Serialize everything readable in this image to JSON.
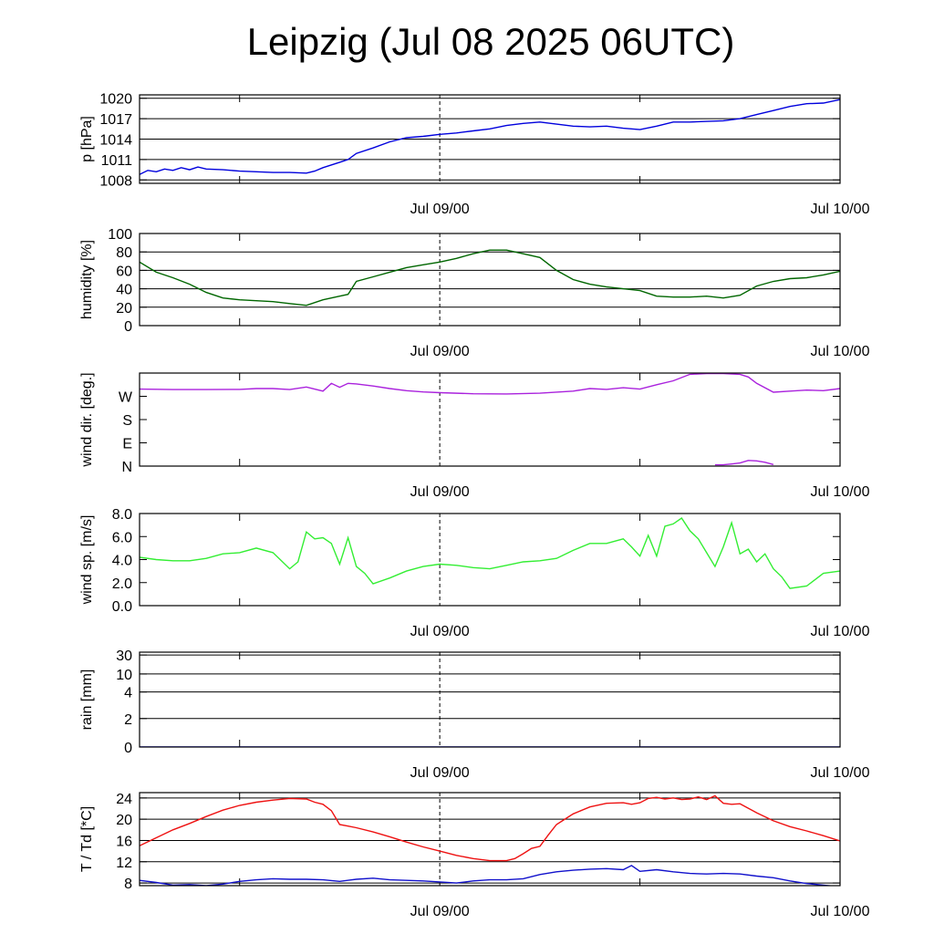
{
  "title": "Leipzig (Jul 08 2025 06UTC)",
  "x_axis": {
    "start_hours": 6,
    "end_hours": 48,
    "labeled_ticks": [
      {
        "label": "Jul 09/00",
        "hours": 24
      },
      {
        "label": "Jul 10/00",
        "hours": 48
      }
    ],
    "minor_ticks_hours": [
      12,
      36
    ]
  },
  "chart_data": [
    {
      "type": "line",
      "name": "pressure",
      "ylabel": "p [hPa]",
      "ylim": [
        1007.5,
        1020.5
      ],
      "yticks": [
        1008,
        1011,
        1014,
        1017,
        1020
      ],
      "ytick_labels": [
        "1008",
        "1011",
        "1014",
        "1017",
        "1020"
      ],
      "grid": true,
      "color": "#0000dd",
      "x": [
        6,
        6.5,
        7,
        7.5,
        8,
        8.5,
        9,
        9.5,
        10,
        11,
        12,
        13,
        14,
        15,
        16,
        16.5,
        17,
        18,
        18.5,
        19,
        20,
        21,
        22,
        23,
        24,
        25,
        26,
        27,
        28,
        29,
        30,
        31,
        32,
        33,
        34,
        35,
        36,
        37,
        38,
        39,
        40,
        41,
        42,
        43,
        44,
        45,
        46,
        47,
        48
      ],
      "y": [
        1008.8,
        1009.4,
        1009.2,
        1009.6,
        1009.4,
        1009.8,
        1009.5,
        1009.9,
        1009.6,
        1009.5,
        1009.3,
        1009.2,
        1009.1,
        1009.1,
        1009,
        1009.3,
        1009.8,
        1010.6,
        1011,
        1011.9,
        1012.7,
        1013.6,
        1014.2,
        1014.4,
        1014.7,
        1014.9,
        1015.2,
        1015.5,
        1016,
        1016.3,
        1016.5,
        1016.2,
        1015.9,
        1015.8,
        1015.9,
        1015.6,
        1015.4,
        1015.9,
        1016.5,
        1016.5,
        1016.6,
        1016.7,
        1017,
        1017.6,
        1018.2,
        1018.8,
        1019.2,
        1019.3,
        1019.8
      ]
    },
    {
      "type": "line",
      "name": "humidity",
      "ylabel": "humidity [%]",
      "ylim": [
        0,
        100
      ],
      "yticks": [
        0,
        20,
        40,
        60,
        80,
        100
      ],
      "ytick_labels": [
        "0",
        "20",
        "40",
        "60",
        "80",
        "100"
      ],
      "grid": true,
      "color": "#006600",
      "x": [
        6,
        7,
        8,
        9,
        10,
        11,
        12,
        13,
        14,
        15,
        16,
        17,
        18,
        18.5,
        19,
        20,
        21,
        22,
        23,
        24,
        25,
        26,
        27,
        28,
        29,
        30,
        31,
        32,
        33,
        34,
        35,
        36,
        37,
        38,
        39,
        40,
        41,
        42,
        43,
        44,
        45,
        46,
        47,
        48
      ],
      "y": [
        69,
        58,
        52,
        45,
        36,
        30,
        28,
        27,
        26,
        24,
        22,
        28,
        32,
        34,
        48,
        53,
        58,
        63,
        66,
        69,
        73,
        78,
        82,
        82,
        78,
        74,
        60,
        50,
        45,
        42,
        40,
        38,
        32,
        31,
        31,
        32,
        30,
        33,
        43,
        48,
        51,
        52,
        55,
        59
      ]
    },
    {
      "type": "line",
      "name": "wind direction",
      "ylabel": "wind dir. [deg.]",
      "ylim": [
        0,
        360
      ],
      "yticks": [
        0,
        90,
        180,
        270
      ],
      "ytick_labels": [
        "N",
        "E",
        "S",
        "W"
      ],
      "grid": false,
      "color": "#aa22dd",
      "x": [
        6,
        8,
        10,
        12,
        13,
        14,
        15,
        16,
        17,
        17.5,
        18,
        18.5,
        19,
        20,
        21,
        22,
        23,
        24,
        26,
        28,
        30,
        32,
        33,
        34,
        35,
        36,
        37,
        38,
        39,
        40,
        41,
        42,
        42.5,
        43,
        44,
        45,
        46,
        47,
        48
      ],
      "y": [
        298,
        296,
        296,
        297,
        300,
        300,
        296,
        306,
        290,
        320,
        305,
        320,
        318,
        310,
        300,
        292,
        287,
        284,
        280,
        279,
        282,
        290,
        300,
        297,
        303,
        298,
        315,
        330,
        355,
        358,
        358,
        355,
        345,
        320,
        286,
        290,
        294,
        292,
        300
      ],
      "second_segment": {
        "x": [
          40.5,
          41,
          41.5,
          42,
          42.5,
          43,
          43.5,
          44
        ],
        "y": [
          5,
          5,
          8,
          12,
          22,
          20,
          15,
          6
        ]
      }
    },
    {
      "type": "line",
      "name": "wind speed",
      "ylabel": "wind sp. [m/s]",
      "ylim": [
        0,
        8
      ],
      "yticks": [
        0,
        2,
        4,
        6,
        8
      ],
      "ytick_labels": [
        "0.0",
        "2.0",
        "4.0",
        "6.0",
        "8.0"
      ],
      "grid": false,
      "color": "#33ee33",
      "x": [
        6,
        7,
        8,
        9,
        10,
        11,
        12,
        13,
        14,
        15,
        15.5,
        16,
        16.5,
        17,
        17.5,
        18,
        18.5,
        19,
        19.5,
        20,
        21,
        22,
        23,
        24,
        25,
        26,
        27,
        28,
        29,
        30,
        31,
        32,
        33,
        34,
        35,
        35.5,
        36,
        36.5,
        37,
        37.5,
        38,
        38.5,
        39,
        39.5,
        40,
        40.5,
        41,
        41.5,
        42,
        42.5,
        43,
        43.5,
        44,
        44.5,
        45,
        46,
        47,
        48
      ],
      "y": [
        4.2,
        4,
        3.9,
        3.9,
        4.1,
        4.5,
        4.6,
        5,
        4.6,
        3.2,
        3.8,
        6.4,
        5.8,
        5.9,
        5.4,
        3.6,
        5.9,
        3.4,
        2.8,
        1.9,
        2.4,
        3,
        3.4,
        3.6,
        3.5,
        3.3,
        3.2,
        3.5,
        3.8,
        3.9,
        4.1,
        4.8,
        5.4,
        5.4,
        5.8,
        5.1,
        4.3,
        6.1,
        4.3,
        6.9,
        7.1,
        7.6,
        6.5,
        5.8,
        4.6,
        3.4,
        5.1,
        7.2,
        4.5,
        4.9,
        3.8,
        4.5,
        3.2,
        2.5,
        1.5,
        1.7,
        2.8,
        3
      ]
    },
    {
      "type": "line",
      "name": "rain",
      "ylabel": "rain [mm]",
      "ylim": [
        0,
        30
      ],
      "yticks": [
        0,
        2,
        4,
        10,
        30
      ],
      "ytick_labels": [
        "0",
        "2",
        "4",
        "10",
        "30"
      ],
      "grid": true,
      "scale": "nonlinear",
      "color": "#0000dd",
      "x": [
        6,
        48
      ],
      "y": [
        0,
        0
      ]
    },
    {
      "type": "line",
      "name": "temperature and dew point",
      "ylabel": "T / Td [*C]",
      "ylim": [
        7.5,
        25
      ],
      "yticks": [
        8,
        12,
        16,
        20,
        24
      ],
      "ytick_labels": [
        "8",
        "12",
        "16",
        "20",
        "24"
      ],
      "grid": true,
      "series": [
        {
          "color": "#ee1111",
          "x": [
            6,
            7,
            8,
            9,
            10,
            11,
            12,
            13,
            14,
            15,
            16,
            16.5,
            17,
            17.5,
            18,
            18.5,
            19,
            20,
            21,
            22,
            23,
            24,
            25,
            26,
            27,
            28,
            28.5,
            29,
            29.5,
            30,
            30.5,
            31,
            32,
            33,
            34,
            35,
            35.5,
            36,
            36.5,
            37,
            37.5,
            38,
            38.5,
            39,
            39.5,
            40,
            40.5,
            41,
            41.5,
            42,
            43,
            44,
            45,
            46,
            47,
            48
          ],
          "y": [
            15,
            16.5,
            18,
            19.2,
            20.5,
            21.7,
            22.6,
            23.2,
            23.6,
            23.9,
            23.8,
            23.2,
            22.8,
            21.6,
            19,
            18.7,
            18.4,
            17.6,
            16.7,
            15.7,
            14.8,
            14,
            13.2,
            12.6,
            12.2,
            12.2,
            12.6,
            13.5,
            14.5,
            14.9,
            17,
            19,
            21,
            22.3,
            23,
            23.1,
            22.8,
            23.1,
            23.9,
            24.1,
            23.8,
            24,
            23.7,
            23.8,
            24.2,
            23.7,
            24.4,
            23,
            22.8,
            22.9,
            21.2,
            19.7,
            18.6,
            17.8,
            16.9,
            15.9
          ]
        },
        {
          "color": "#1111cc",
          "x": [
            6,
            7,
            8,
            9,
            10,
            11,
            12,
            13,
            14,
            15,
            16,
            17,
            18,
            19,
            20,
            21,
            22,
            23,
            24,
            25,
            26,
            27,
            28,
            29,
            30,
            31,
            32,
            33,
            34,
            35,
            35.5,
            36,
            37,
            38,
            39,
            40,
            41,
            42,
            43,
            44,
            45,
            46,
            47,
            48
          ],
          "y": [
            8.5,
            8.1,
            7.6,
            7.7,
            7.5,
            7.8,
            8.3,
            8.6,
            8.8,
            8.7,
            8.7,
            8.6,
            8.3,
            8.7,
            8.9,
            8.6,
            8.5,
            8.4,
            8.2,
            8,
            8.4,
            8.6,
            8.6,
            8.8,
            9.6,
            10.1,
            10.4,
            10.6,
            10.7,
            10.5,
            11.3,
            10.2,
            10.5,
            10.1,
            9.8,
            9.7,
            9.8,
            9.7,
            9.3,
            9,
            8.4,
            7.9,
            7.6,
            7.3
          ]
        }
      ]
    }
  ]
}
